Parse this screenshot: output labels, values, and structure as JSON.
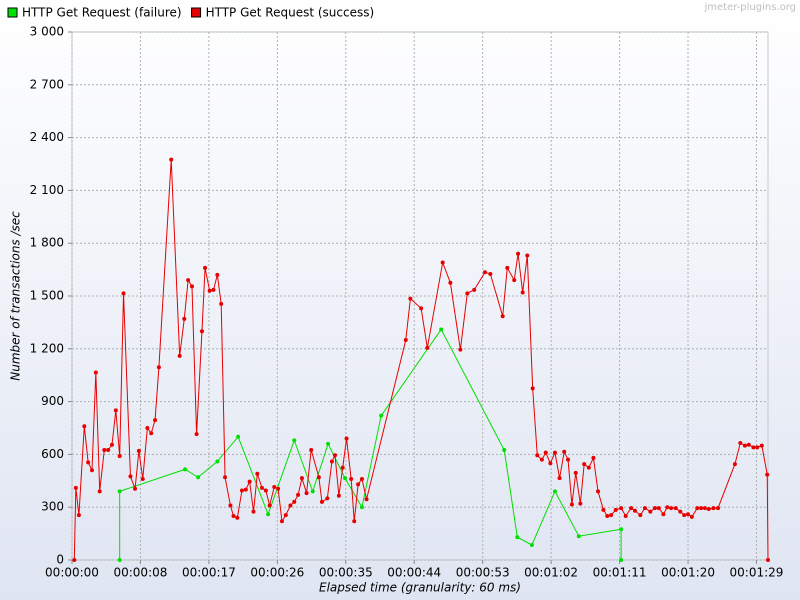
{
  "chart_data": {
    "type": "line",
    "credit": "jmeter-plugins.org",
    "y_label": "Number of transactions /sec",
    "x_label": "Elapsed time (granularity: 60 ms)",
    "grid": true,
    "legend": "top-left",
    "xlim": [
      0,
      90.5
    ],
    "ylim": [
      0,
      3000
    ],
    "xticks": [
      {
        "value": 0,
        "label": "00:00:00"
      },
      {
        "value": 8.9,
        "label": "00:00:08"
      },
      {
        "value": 17.8,
        "label": "00:00:17"
      },
      {
        "value": 26.7,
        "label": "00:00:26"
      },
      {
        "value": 35.6,
        "label": "00:00:35"
      },
      {
        "value": 44.5,
        "label": "00:00:44"
      },
      {
        "value": 53.4,
        "label": "00:00:53"
      },
      {
        "value": 62.3,
        "label": "00:01:02"
      },
      {
        "value": 71.2,
        "label": "00:01:11"
      },
      {
        "value": 80.1,
        "label": "00:01:20"
      },
      {
        "value": 89,
        "label": "00:01:29"
      }
    ],
    "yticks": [
      0,
      {
        "value": 300,
        "label": "300"
      },
      {
        "value": 600,
        "label": "600"
      },
      {
        "value": 900,
        "label": "900"
      },
      {
        "value": 1200,
        "label": "1 200"
      },
      {
        "value": 1500,
        "label": "1 500"
      },
      {
        "value": 1800,
        "label": "1 800"
      },
      {
        "value": 2100,
        "label": "2 100"
      },
      {
        "value": 2400,
        "label": "2 400"
      },
      {
        "value": 2700,
        "label": "2 700"
      },
      {
        "value": 3000,
        "label": "3 000"
      }
    ],
    "series": [
      {
        "name": "HTTP Get Request (failure)",
        "color": "#00e000",
        "x": [
          6.2,
          6.2,
          14.7,
          16.4,
          18.9,
          21.6,
          25.5,
          28.9,
          31.3,
          33.3,
          35.5,
          37.7,
          40.2,
          48.0,
          56.2,
          57.9,
          59.8,
          62.8,
          65.9,
          71.4,
          71.4
        ],
        "values": [
          0,
          390,
          515,
          470,
          560,
          700,
          260,
          680,
          390,
          660,
          465,
          300,
          820,
          1310,
          625,
          130,
          85,
          390,
          135,
          175,
          0
        ]
      },
      {
        "name": "HTTP Get Request (success)",
        "color": "#e80000",
        "x": [
          0.3,
          0.5,
          0.9,
          1.6,
          2.1,
          2.6,
          3.1,
          3.6,
          4.2,
          4.7,
          5.2,
          5.7,
          6.2,
          6.7,
          7.6,
          8.2,
          8.7,
          9.2,
          9.8,
          10.3,
          10.8,
          11.3,
          12.9,
          14.0,
          14.6,
          15.1,
          15.6,
          16.2,
          16.9,
          17.3,
          17.9,
          18.4,
          18.9,
          19.4,
          19.9,
          20.6,
          21.0,
          21.5,
          22.1,
          22.6,
          23.1,
          23.6,
          24.1,
          24.7,
          25.2,
          25.7,
          26.3,
          26.8,
          27.3,
          27.8,
          28.4,
          28.9,
          29.4,
          29.9,
          30.5,
          31.1,
          32.1,
          32.5,
          33.2,
          33.8,
          34.2,
          34.7,
          35.2,
          35.7,
          36.3,
          36.7,
          37.2,
          37.7,
          38.3,
          43.4,
          44.0,
          45.4,
          46.2,
          48.2,
          49.2,
          50.5,
          51.4,
          52.3,
          53.7,
          54.4,
          56.0,
          56.6,
          57.5,
          58.0,
          58.6,
          59.2,
          59.9,
          60.5,
          61.1,
          61.6,
          62.2,
          62.8,
          63.4,
          64.0,
          64.5,
          65.0,
          65.5,
          66.1,
          66.6,
          67.2,
          67.8,
          68.4,
          69.1,
          69.6,
          70.1,
          70.7,
          71.4,
          72.0,
          72.7,
          73.2,
          73.9,
          74.5,
          75.2,
          75.8,
          76.3,
          76.9,
          77.4,
          77.9,
          78.5,
          79.1,
          79.6,
          80.1,
          80.6,
          81.3,
          81.8,
          82.3,
          82.8,
          83.4,
          84.0,
          86.2,
          86.9,
          87.5,
          88.0,
          88.6,
          89.1,
          89.7,
          90.4,
          90.5
        ],
        "values": [
          0,
          410,
          255,
          760,
          555,
          510,
          1065,
          390,
          625,
          625,
          655,
          850,
          590,
          1515,
          475,
          405,
          620,
          460,
          750,
          720,
          795,
          1095,
          2275,
          1160,
          1370,
          1590,
          1555,
          715,
          1300,
          1660,
          1530,
          1535,
          1620,
          1455,
          470,
          310,
          250,
          240,
          395,
          400,
          445,
          275,
          490,
          410,
          395,
          310,
          415,
          405,
          220,
          255,
          310,
          330,
          370,
          465,
          380,
          625,
          470,
          330,
          350,
          560,
          595,
          365,
          525,
          690,
          460,
          220,
          430,
          460,
          345,
          1250,
          1485,
          1430,
          1205,
          1690,
          1575,
          1195,
          1515,
          1535,
          1635,
          1625,
          1385,
          1660,
          1590,
          1740,
          1520,
          1730,
          975,
          595,
          570,
          610,
          550,
          610,
          465,
          615,
          570,
          315,
          495,
          320,
          545,
          525,
          580,
          390,
          285,
          250,
          255,
          285,
          295,
          250,
          295,
          280,
          255,
          295,
          275,
          295,
          295,
          260,
          300,
          295,
          295,
          275,
          255,
          260,
          245,
          295,
          295,
          295,
          290,
          295,
          295,
          545,
          665,
          650,
          655,
          640,
          640,
          650,
          485,
          0
        ]
      }
    ]
  }
}
